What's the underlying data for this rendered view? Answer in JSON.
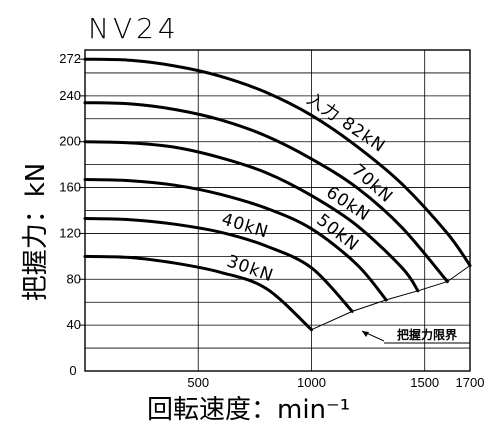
{
  "chart_data": {
    "type": "line",
    "title": "NV24",
    "xlabel": "回転速度：min⁻¹",
    "ylabel": "把握力：kN",
    "xlim": [
      0,
      1700
    ],
    "ylim": [
      0,
      280
    ],
    "x_ticks": [
      500,
      1000,
      1500,
      1700
    ],
    "y_ticks": [
      40,
      80,
      120,
      160,
      200,
      240,
      272
    ],
    "origin_label": "0",
    "grid": true,
    "series": [
      {
        "name": "入力 82kN",
        "x": [
          0,
          200,
          400,
          600,
          800,
          1000,
          1200,
          1400,
          1600,
          1700
        ],
        "y": [
          272,
          271,
          266,
          257,
          243,
          223,
          196,
          163,
          120,
          92
        ]
      },
      {
        "name": "70kN",
        "x": [
          0,
          200,
          400,
          600,
          800,
          1000,
          1200,
          1400,
          1600
        ],
        "y": [
          234,
          233,
          228,
          219,
          205,
          185,
          160,
          125,
          78
        ]
      },
      {
        "name": "60kN",
        "x": [
          0,
          200,
          400,
          600,
          800,
          1000,
          1200,
          1400,
          1470
        ],
        "y": [
          200,
          199,
          195,
          186,
          173,
          153,
          127,
          90,
          70
        ]
      },
      {
        "name": "50kN",
        "x": [
          0,
          200,
          400,
          600,
          800,
          1000,
          1200,
          1330
        ],
        "y": [
          167,
          166,
          162,
          154,
          142,
          124,
          93,
          62
        ]
      },
      {
        "name": "40kN",
        "x": [
          0,
          200,
          400,
          600,
          800,
          1000,
          1180
        ],
        "y": [
          133,
          132,
          128,
          121,
          109,
          90,
          52
        ]
      },
      {
        "name": "30kN",
        "x": [
          0,
          200,
          400,
          600,
          800,
          1000
        ],
        "y": [
          100,
          99,
          94,
          86,
          72,
          36
        ]
      }
    ],
    "limit_line": {
      "x": [
        1000,
        1180,
        1330,
        1470,
        1600,
        1700
      ],
      "y": [
        36,
        52,
        62,
        70,
        78,
        92
      ]
    },
    "annotation": "把握力限界"
  }
}
